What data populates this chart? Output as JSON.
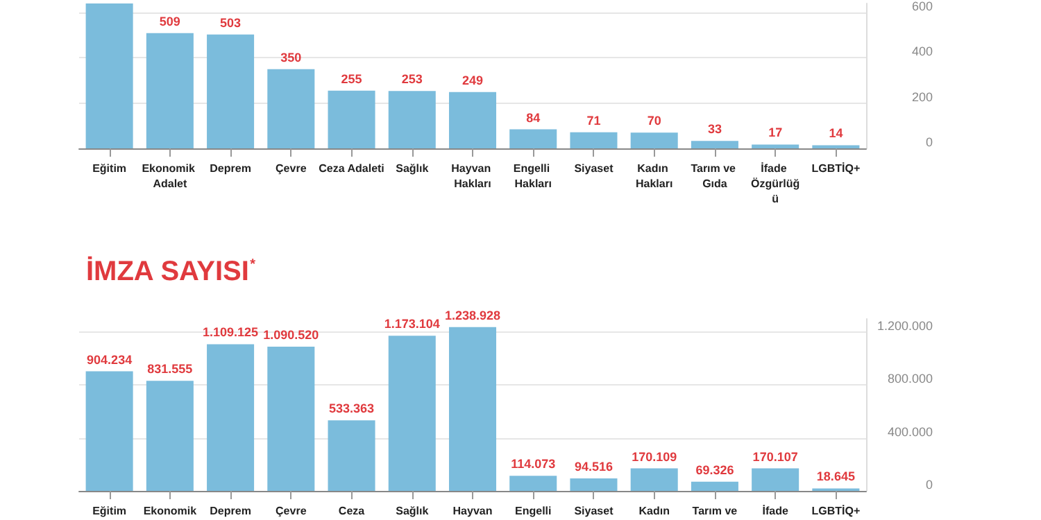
{
  "chart_data": [
    {
      "type": "bar",
      "categories": [
        "Eğitim",
        "Ekonomik Adalet",
        "Deprem",
        "Çevre",
        "Ceza Adaleti",
        "Sağlık",
        "Hayvan Hakları",
        "Engelli Hakları",
        "Siyaset",
        "Kadın Hakları",
        "Tarım ve Gıda",
        "İfade Özgürlüğü",
        "LGBTİQ+"
      ],
      "values": [
        640,
        509,
        503,
        350,
        255,
        253,
        249,
        84,
        71,
        70,
        33,
        17,
        14
      ],
      "value_labels": [
        null,
        "509",
        "503",
        "350",
        "255",
        "253",
        "249",
        "84",
        "71",
        "70",
        "33",
        "17",
        "14"
      ],
      "color": "#7bbcdc",
      "ylim": [
        0,
        640
      ],
      "yticks": [
        0,
        200,
        400,
        600
      ],
      "grid": "y"
    },
    {
      "type": "bar",
      "title": "İMZA SAYISI$^{*}$",
      "categories": [
        "Eğitim",
        "Ekonomik",
        "Deprem",
        "Çevre",
        "Ceza",
        "Sağlık",
        "Hayvan",
        "Engelli",
        "Siyaset",
        "Kadın",
        "Tarım ve",
        "İfade",
        "LGBTİQ+"
      ],
      "values": [
        904234,
        831555,
        1109125,
        1090520,
        533363,
        1173104,
        1238928,
        114073,
        94516,
        170109,
        69326,
        170107,
        18645
      ],
      "value_labels": [
        "904.234",
        "831.555",
        "1.109.125",
        "1.090.520",
        "533.363",
        "1.173.104",
        "1.238.928",
        "114.073",
        "94.516",
        "170.109",
        "69.326",
        "170.107",
        "18.645"
      ],
      "color": "#7bbcdc",
      "ylim": [
        0,
        1300000
      ],
      "yticks": [
        0,
        {
          "value": 400000,
          "label": "400.000"
        },
        {
          "value": 800000,
          "label": "800.000"
        },
        {
          "value": 1200000,
          "label": "1.200.000"
        }
      ],
      "grid": "y"
    }
  ]
}
